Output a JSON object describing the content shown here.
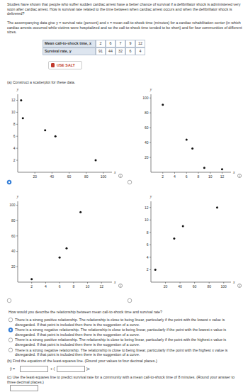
{
  "intro": "Studies have shown that people who suffer sudden cardiac arrest have a better chance of survival if a defibrillator shock is administered very soon after cardiac arrest. How is survival rate related to the time between when cardiac arrest occurs and when the defibrillator shock is delivered?",
  "data_text": "The accompanying data give y = survival rate (percent) and x = mean call-to-shock time (minutes) for a cardiac rehabilitation center (in which cardiac arrests occurred while victims were hospitalized and so the call-to-shock time tended to be short) and for four communities of different sizes.",
  "table": {
    "header_x": "Mean call-to-shock time, x",
    "header_y": "Survival rate, y",
    "x": [
      2,
      6,
      7,
      9,
      12
    ],
    "y": [
      91,
      44,
      32,
      6,
      4
    ]
  },
  "button": "USE SALT",
  "part_a": "(a) Construct a scatterplot for these data.",
  "selected_plot": 0,
  "chart_data": [
    {
      "type": "scatter",
      "x_label": "x",
      "y_label": "y",
      "marker": "circle",
      "color": "#111111",
      "x": [
        4,
        6,
        32,
        44,
        91
      ],
      "values": [
        12,
        9,
        7,
        6,
        2
      ],
      "xlim": [
        0,
        110
      ],
      "ylim": [
        0,
        13
      ],
      "xticks": [
        20,
        40,
        60,
        80,
        100
      ],
      "yticks": [
        2,
        4,
        6,
        8,
        10,
        12
      ]
    },
    {
      "type": "scatter",
      "x_label": "x",
      "y_label": "y",
      "marker": "circle",
      "color": "#111111",
      "x": [
        2,
        6,
        7,
        9,
        12
      ],
      "values": [
        91,
        44,
        32,
        6,
        4
      ],
      "xlim": [
        0,
        13.5
      ],
      "ylim": [
        0,
        105
      ],
      "xticks": [
        2,
        4,
        6,
        8,
        10,
        12
      ],
      "yticks": [
        20,
        40,
        60,
        80,
        100
      ]
    },
    {
      "type": "scatter",
      "x_label": "x",
      "y_label": "y",
      "marker": "circle",
      "color": "#111111",
      "x": [
        2,
        6,
        7,
        9
      ],
      "values": [
        4,
        32,
        44,
        91
      ],
      "xlim": [
        0,
        13.5
      ],
      "ylim": [
        0,
        105
      ],
      "xticks": [
        2,
        4,
        6,
        8,
        10,
        12
      ],
      "yticks": [
        20,
        40,
        60,
        80,
        100
      ]
    },
    {
      "type": "scatter",
      "x_label": "x",
      "y_label": "y",
      "marker": "circle",
      "color": "#111111",
      "x": [
        6,
        32,
        44,
        91
      ],
      "values": [
        2,
        7,
        9,
        12
      ],
      "xlim": [
        0,
        110
      ],
      "ylim": [
        0,
        13
      ],
      "xticks": [
        20,
        40,
        60,
        80,
        100
      ],
      "yticks": [
        2,
        4,
        6,
        8,
        10,
        12
      ]
    }
  ],
  "question": "How would you describe the relationship between mean call-to-shock time and survival rate?",
  "selected_option": 1,
  "options": [
    "There is a strong positive relationship. The relationship is close to being linear, particularly if the point with the lowest x value is disregarded. If that point is included then there is the suggestion of a curve.",
    "There is a strong negative relationship. The relationship is close to being linear, particularly if the point with the lowest x value is disregarded. If that point is included then there is the suggestion of a curve.",
    "There is a strong positive relationship. The relationship is close to being linear, particularly if the point with the highest x value is disregarded. If that point is included then there is the suggestion of a curve.",
    "There is a strong negative relationship. The relationship is close to being linear, particularly if the point with the highest x value is disregarded. If that point is included then there is the suggestion of a curve."
  ],
  "part_b": {
    "text": "(b) Find the equation of the least-squares line. (Round your values to four decimal places.)",
    "lhs": "ŷ =",
    "plus": "+ (",
    "close": ")x"
  },
  "part_c": "(c) Use the least-squares line to predict survival rate for a community with a mean call-to-shock time of 8 minutes. (Round your answer to three decimal places.)"
}
